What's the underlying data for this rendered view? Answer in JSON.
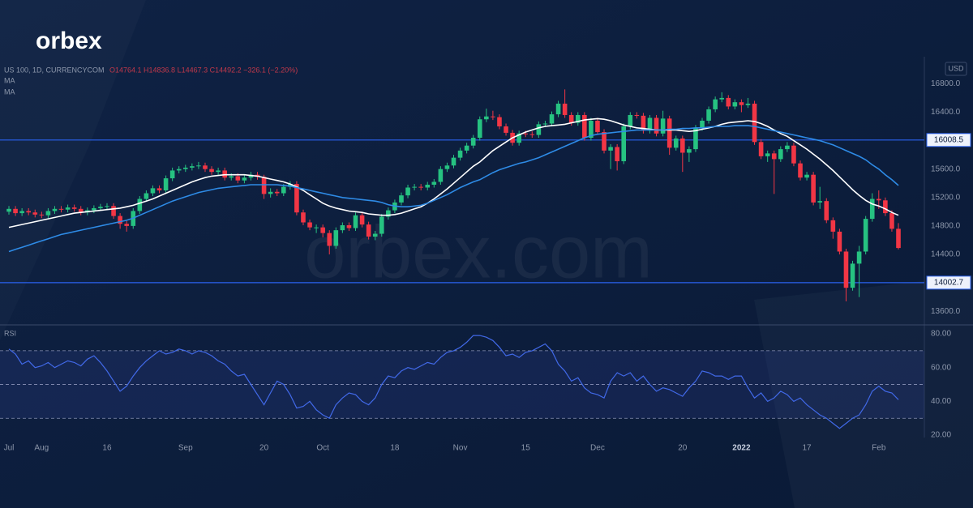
{
  "header": {
    "logo": "orbex",
    "watermark": "orbex.com"
  },
  "chart_data": [
    {
      "type": "candlestick",
      "title": "US 100, 1D, CURRENCYCOM",
      "ohlc": "O14764.1 H14836.8 L14467.3 C14492.2 −326.1 (−2.20%)",
      "currency": "USD",
      "categories": [
        "Jul",
        null,
        null,
        null,
        null,
        "Aug",
        null,
        null,
        null,
        null,
        null,
        null,
        null,
        null,
        null,
        "16",
        null,
        null,
        null,
        null,
        null,
        null,
        null,
        null,
        null,
        null,
        null,
        "Sep",
        null,
        null,
        null,
        null,
        null,
        null,
        null,
        null,
        null,
        null,
        null,
        "20",
        null,
        null,
        null,
        null,
        null,
        null,
        null,
        null,
        "Oct",
        null,
        null,
        null,
        null,
        null,
        null,
        null,
        null,
        null,
        null,
        "18",
        null,
        null,
        null,
        null,
        null,
        null,
        null,
        null,
        null,
        "Nov",
        null,
        null,
        null,
        null,
        null,
        null,
        null,
        null,
        null,
        "15",
        null,
        null,
        null,
        null,
        null,
        null,
        null,
        null,
        null,
        null,
        "Dec",
        null,
        null,
        null,
        null,
        null,
        null,
        null,
        null,
        null,
        null,
        null,
        null,
        "20",
        null,
        null,
        null,
        null,
        null,
        null,
        null,
        null,
        "2022",
        null,
        null,
        null,
        null,
        null,
        null,
        null,
        null,
        null,
        "17",
        null,
        null,
        null,
        null,
        null,
        null,
        null,
        null,
        null,
        null,
        "Feb",
        null,
        null,
        null
      ],
      "open": [
        15000,
        15040,
        14980,
        15010,
        14990,
        14960,
        14950,
        15010,
        15040,
        15030,
        15060,
        15040,
        14990,
        15020,
        15050,
        15070,
        15080,
        14940,
        14830,
        14800,
        15010,
        15180,
        15260,
        15330,
        15300,
        15470,
        15580,
        15600,
        15620,
        15640,
        15650,
        15600,
        15560,
        15580,
        15480,
        15500,
        15440,
        15480,
        15520,
        15490,
        15250,
        15280,
        15260,
        15350,
        15390,
        14990,
        14850,
        14780,
        14780,
        14700,
        14520,
        14740,
        14810,
        14770,
        14950,
        14820,
        14650,
        14690,
        14930,
        15020,
        15130,
        15230,
        15340,
        15350,
        15340,
        15380,
        15420,
        15600,
        15650,
        15760,
        15860,
        15930,
        16040,
        16300,
        16340,
        16330,
        16200,
        16110,
        15970,
        16100,
        16090,
        16080,
        16230,
        16240,
        16370,
        16520,
        16360,
        16250,
        16360,
        16040,
        16280,
        16120,
        15860,
        15910,
        15710,
        16200,
        16360,
        16350,
        16140,
        16320,
        16100,
        16310,
        15900,
        16030,
        15830,
        15880,
        16180,
        16280,
        16440,
        16580,
        16600,
        16480,
        16540,
        16500,
        16520,
        15980,
        15780,
        15820,
        15740,
        15880,
        15930,
        15680,
        15480,
        15520,
        15130,
        15150,
        14880,
        14720,
        14440,
        13930,
        14270,
        14440,
        14900,
        15180,
        15160,
        14980,
        14760
      ],
      "high": [
        15080,
        15080,
        15050,
        15050,
        15030,
        15000,
        15050,
        15080,
        15080,
        15100,
        15100,
        15080,
        15060,
        15090,
        15110,
        15120,
        15120,
        14980,
        14870,
        15050,
        15220,
        15300,
        15370,
        15370,
        15510,
        15620,
        15640,
        15660,
        15680,
        15700,
        15690,
        15640,
        15620,
        15620,
        15540,
        15540,
        15520,
        15560,
        15560,
        15520,
        15330,
        15320,
        15390,
        15430,
        15430,
        15030,
        14890,
        14820,
        14820,
        14740,
        14780,
        14850,
        14850,
        14990,
        14990,
        14860,
        14730,
        14970,
        15060,
        15170,
        15270,
        15380,
        15390,
        15390,
        15420,
        15460,
        15640,
        15690,
        15800,
        15900,
        15970,
        16080,
        16340,
        16450,
        16420,
        16370,
        16240,
        16150,
        16140,
        16140,
        16130,
        16270,
        16280,
        16410,
        16560,
        16720,
        16400,
        16400,
        16400,
        16320,
        16320,
        16160,
        15950,
        15950,
        16240,
        16400,
        16400,
        16390,
        16360,
        16360,
        16420,
        16350,
        16070,
        16070,
        15920,
        16220,
        16320,
        16480,
        16620,
        16680,
        16640,
        16580,
        16580,
        16600,
        16560,
        16020,
        15860,
        15860,
        15920,
        15980,
        15970,
        15720,
        15560,
        15560,
        15350,
        15190,
        14920,
        14760,
        14480,
        14310,
        14520,
        14940,
        15260,
        15300,
        15200,
        15020,
        14840
      ],
      "low": [
        14960,
        14940,
        14940,
        14950,
        14920,
        14910,
        14910,
        14970,
        14990,
        14990,
        15000,
        14950,
        14950,
        14980,
        15010,
        15030,
        14900,
        14760,
        14720,
        14760,
        14970,
        15140,
        15220,
        15260,
        15260,
        15430,
        15540,
        15560,
        15580,
        15600,
        15560,
        15520,
        15520,
        15440,
        15440,
        15400,
        15400,
        15440,
        15450,
        15180,
        15200,
        15220,
        15220,
        15310,
        14950,
        14810,
        14740,
        14700,
        14640,
        14400,
        14480,
        14700,
        14730,
        14730,
        14780,
        14610,
        14600,
        14650,
        14890,
        14980,
        15090,
        15190,
        15300,
        15300,
        15300,
        15340,
        15380,
        15560,
        15610,
        15720,
        15820,
        15890,
        16000,
        16260,
        16290,
        16160,
        16070,
        15930,
        15930,
        16050,
        16040,
        16040,
        16190,
        16200,
        16330,
        16320,
        16210,
        16210,
        16000,
        16000,
        16080,
        15820,
        15600,
        15580,
        15670,
        16160,
        16310,
        16100,
        16100,
        16060,
        16060,
        15800,
        15860,
        15560,
        15700,
        15840,
        16140,
        16240,
        16400,
        16540,
        16440,
        16440,
        16400,
        16460,
        15940,
        15740,
        15700,
        15250,
        15700,
        15840,
        15640,
        15440,
        15440,
        15090,
        15040,
        14840,
        14620,
        14400,
        13740,
        13890,
        13800,
        14400,
        14860,
        15040,
        14940,
        14720,
        14470
      ],
      "close": [
        15040,
        14980,
        15010,
        14990,
        14960,
        14950,
        15010,
        15040,
        15030,
        15060,
        15040,
        14990,
        15020,
        15050,
        15070,
        15080,
        14940,
        14830,
        14800,
        15010,
        15180,
        15260,
        15330,
        15300,
        15470,
        15580,
        15600,
        15620,
        15640,
        15650,
        15600,
        15560,
        15580,
        15480,
        15500,
        15440,
        15480,
        15520,
        15490,
        15250,
        15280,
        15260,
        15350,
        15390,
        14990,
        14850,
        14780,
        14780,
        14700,
        14520,
        14740,
        14810,
        14770,
        14950,
        14820,
        14650,
        14690,
        14930,
        15020,
        15130,
        15230,
        15340,
        15350,
        15340,
        15380,
        15420,
        15600,
        15650,
        15760,
        15860,
        15930,
        16040,
        16300,
        16340,
        16330,
        16200,
        16110,
        15970,
        16100,
        16090,
        16080,
        16230,
        16240,
        16370,
        16520,
        16360,
        16250,
        16360,
        16040,
        16280,
        16120,
        15860,
        15910,
        15710,
        16200,
        16360,
        16350,
        16140,
        16320,
        16100,
        16310,
        15900,
        16030,
        15830,
        15880,
        16180,
        16280,
        16440,
        16580,
        16600,
        16480,
        16540,
        16500,
        16520,
        15980,
        15780,
        15820,
        15740,
        15880,
        15930,
        15680,
        15480,
        15520,
        15130,
        15150,
        14880,
        14720,
        14440,
        13930,
        14270,
        14440,
        14900,
        15180,
        15160,
        14980,
        14760,
        14490
      ],
      "up_color": "#26c281",
      "down_color": "#f23645",
      "series": [
        {
          "name": "MA",
          "color": "#ffffff",
          "values": [
            14780,
            14800,
            14820,
            14840,
            14860,
            14880,
            14900,
            14920,
            14940,
            14960,
            14980,
            14990,
            15000,
            15010,
            15020,
            15030,
            15040,
            15050,
            15070,
            15090,
            15120,
            15150,
            15180,
            15220,
            15260,
            15300,
            15340,
            15380,
            15420,
            15450,
            15480,
            15500,
            15510,
            15520,
            15520,
            15520,
            15520,
            15510,
            15500,
            15480,
            15460,
            15440,
            15420,
            15390,
            15350,
            15300,
            15240,
            15180,
            15120,
            15080,
            15050,
            15030,
            15010,
            15000,
            14990,
            14970,
            14960,
            14950,
            14950,
            14960,
            14980,
            15010,
            15040,
            15070,
            15120,
            15180,
            15250,
            15320,
            15400,
            15480,
            15560,
            15640,
            15700,
            15780,
            15860,
            15920,
            15980,
            16040,
            16080,
            16120,
            16150,
            16180,
            16200,
            16210,
            16220,
            16230,
            16250,
            16270,
            16290,
            16300,
            16310,
            16300,
            16280,
            16250,
            16220,
            16200,
            16180,
            16170,
            16160,
            16150,
            16150,
            16150,
            16150,
            16140,
            16130,
            16140,
            16160,
            16180,
            16200,
            16230,
            16250,
            16260,
            16270,
            16280,
            16270,
            16240,
            16200,
            16150,
            16100,
            16060,
            16000,
            15940,
            15880,
            15810,
            15740,
            15660,
            15580,
            15490,
            15400,
            15310,
            15230,
            15160,
            15110,
            15080,
            15040,
            14990,
            14950
          ]
        },
        {
          "name": "MA",
          "color": "#2e8be6",
          "values": [
            14440,
            14470,
            14500,
            14530,
            14560,
            14590,
            14620,
            14650,
            14680,
            14700,
            14720,
            14740,
            14760,
            14780,
            14800,
            14820,
            14840,
            14860,
            14880,
            14910,
            14950,
            14990,
            15030,
            15070,
            15110,
            15150,
            15180,
            15210,
            15240,
            15270,
            15290,
            15310,
            15330,
            15340,
            15350,
            15360,
            15370,
            15380,
            15380,
            15380,
            15380,
            15380,
            15370,
            15360,
            15340,
            15320,
            15300,
            15280,
            15260,
            15240,
            15220,
            15200,
            15190,
            15180,
            15170,
            15160,
            15150,
            15130,
            15100,
            15080,
            15070,
            15070,
            15080,
            15090,
            15120,
            15160,
            15200,
            15240,
            15290,
            15340,
            15380,
            15420,
            15450,
            15500,
            15550,
            15590,
            15620,
            15650,
            15680,
            15700,
            15730,
            15760,
            15800,
            15840,
            15880,
            15920,
            15960,
            16000,
            16040,
            16070,
            16090,
            16100,
            16110,
            16120,
            16130,
            16140,
            16150,
            16150,
            16150,
            16150,
            16150,
            16160,
            16160,
            16170,
            16170,
            16180,
            16180,
            16190,
            16200,
            16200,
            16200,
            16210,
            16210,
            16210,
            16200,
            16180,
            16160,
            16140,
            16120,
            16100,
            16080,
            16060,
            16040,
            16020,
            16000,
            15970,
            15940,
            15900,
            15860,
            15820,
            15780,
            15730,
            15660,
            15600,
            15520,
            15450,
            15370
          ]
        }
      ],
      "ylim": [
        13420,
        17180
      ],
      "yticks": [
        {
          "value": 13600,
          "label": "13600.0"
        },
        {
          "value": 14400,
          "label": "14400.0"
        },
        {
          "value": 14800,
          "label": "14800.0"
        },
        {
          "value": 15200,
          "label": "15200.0"
        },
        {
          "value": 15600,
          "label": "15600.0"
        },
        {
          "value": 16400,
          "label": "16400.0"
        },
        {
          "value": 16800,
          "label": "16800.0"
        }
      ],
      "hlines": [
        {
          "value": 16008.5,
          "color": "#2a62f0"
        },
        {
          "value": 14002.7,
          "color": "#2a62f0"
        }
      ],
      "grid": false
    },
    {
      "type": "line",
      "title": "RSI",
      "color": "#4169e8",
      "values": [
        71,
        68,
        62,
        64,
        60,
        61,
        63,
        60,
        62,
        64,
        63,
        61,
        65,
        67,
        63,
        58,
        52,
        46,
        49,
        55,
        60,
        64,
        67,
        70,
        68,
        69,
        71,
        70,
        68,
        70,
        69,
        67,
        64,
        62,
        58,
        55,
        56,
        50,
        44,
        38,
        45,
        52,
        50,
        44,
        36,
        37,
        40,
        35,
        32,
        30,
        38,
        42,
        45,
        44,
        40,
        38,
        42,
        50,
        55,
        54,
        58,
        60,
        59,
        61,
        63,
        62,
        66,
        69,
        70,
        72,
        75,
        79,
        79,
        78,
        76,
        72,
        67,
        68,
        66,
        69,
        70,
        72,
        74,
        70,
        62,
        58,
        52,
        54,
        48,
        45,
        44,
        42,
        52,
        57,
        55,
        57,
        52,
        55,
        50,
        46,
        48,
        47,
        45,
        43,
        48,
        52,
        58,
        57,
        55,
        55,
        53,
        55,
        55,
        48,
        42,
        45,
        40,
        42,
        46,
        44,
        40,
        42,
        38,
        35,
        32,
        30,
        27,
        24,
        27,
        30,
        32,
        38,
        46,
        49,
        46,
        45,
        41
      ],
      "ylim": [
        18.6,
        84.8
      ],
      "yticks": [
        {
          "value": 20,
          "label": "20.00"
        },
        {
          "value": 40,
          "label": "40.00"
        },
        {
          "value": 60,
          "label": "60.00"
        },
        {
          "value": 80,
          "label": "80.00"
        }
      ],
      "levels": [
        70,
        50,
        30
      ]
    }
  ]
}
